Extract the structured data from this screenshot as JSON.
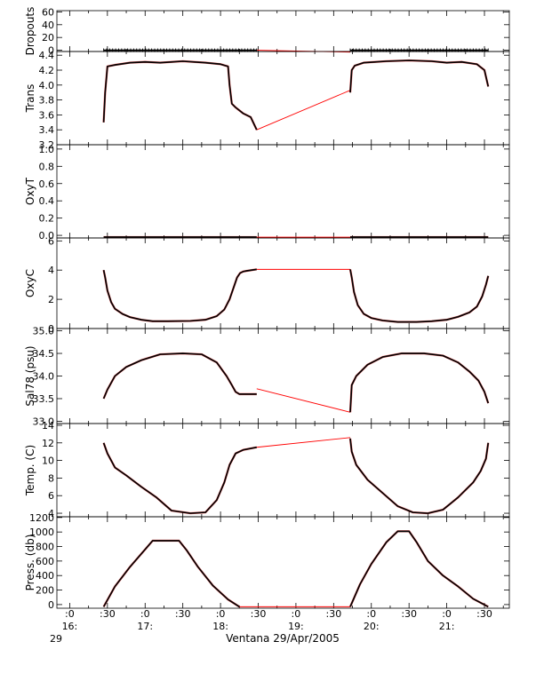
{
  "chart_data": {
    "type": "line",
    "time_axis": {
      "major_labels": [
        ":0",
        ":30",
        ":0",
        ":30",
        ":0",
        ":30",
        ":0",
        ":30",
        ":0",
        ":30",
        ":0",
        ":30"
      ],
      "hour_labels": [
        "16:",
        "17:",
        "18:",
        "19:",
        "20:",
        "21:"
      ],
      "day_label": "29",
      "xlabel": "Ventana 29/Apr/2005",
      "xlim_hours": [
        15.83,
        21.83
      ]
    },
    "colors": {
      "data": "#000000",
      "gap": "#ff0000",
      "axis": "#000000"
    },
    "panels": [
      {
        "name": "dropouts",
        "ylabel": "Dropouts",
        "ylim": [
          -2,
          62
        ],
        "ticks": [
          "60",
          "40",
          "20",
          "0"
        ],
        "tick_values": [
          60,
          40,
          20,
          0
        ],
        "series": [
          {
            "x": [
              16.45,
              18.48
            ],
            "y": [
              0,
              0
            ],
            "style": "markers"
          },
          {
            "x": [
              19.72,
              21.55
            ],
            "y": [
              0,
              0
            ],
            "style": "markers"
          }
        ],
        "gap": {
          "x": [
            18.48,
            19.72
          ],
          "y": [
            0,
            -3
          ]
        }
      },
      {
        "name": "trans",
        "ylabel": "Trans",
        "ylim": [
          3.2,
          4.45
        ],
        "ticks": [
          "4.4",
          "4.2",
          "4.0",
          "3.8",
          "3.6",
          "3.4",
          "3.2"
        ],
        "tick_values": [
          4.4,
          4.2,
          4.0,
          3.8,
          3.6,
          3.4,
          3.2
        ],
        "series": [
          {
            "x": [
              16.45,
              16.47,
              16.5,
              16.6,
              16.8,
              17.0,
              17.2,
              17.5,
              17.8,
              18.0,
              18.1,
              18.12,
              18.15,
              18.2,
              18.3,
              18.4,
              18.48
            ],
            "y": [
              3.5,
              3.9,
              4.25,
              4.27,
              4.3,
              4.31,
              4.3,
              4.32,
              4.3,
              4.28,
              4.25,
              4.0,
              3.75,
              3.7,
              3.62,
              3.57,
              3.4
            ]
          },
          {
            "x": [
              19.72,
              19.74,
              19.78,
              19.9,
              20.2,
              20.5,
              20.8,
              21.0,
              21.2,
              21.4,
              21.5,
              21.55
            ],
            "y": [
              3.9,
              4.2,
              4.26,
              4.3,
              4.32,
              4.33,
              4.32,
              4.3,
              4.31,
              4.28,
              4.2,
              3.98
            ]
          }
        ],
        "gap": {
          "x": [
            18.48,
            19.72
          ],
          "y": [
            3.4,
            3.93
          ]
        }
      },
      {
        "name": "oxyt",
        "ylabel": "OxyT",
        "ylim": [
          -0.03,
          1.05
        ],
        "ticks": [
          "1.0",
          "0.8",
          "0.6",
          "0.4",
          "0.2",
          "0.0"
        ],
        "tick_values": [
          1.0,
          0.8,
          0.6,
          0.4,
          0.2,
          0.0
        ],
        "series": [
          {
            "x": [
              16.45,
              18.48
            ],
            "y": [
              -0.02,
              -0.02
            ]
          },
          {
            "x": [
              19.72,
              21.55
            ],
            "y": [
              -0.02,
              -0.02
            ]
          }
        ],
        "gap": {
          "x": [
            18.48,
            19.72
          ],
          "y": [
            -0.02,
            -0.02
          ]
        }
      },
      {
        "name": "oxyc",
        "ylabel": "OxyC",
        "ylim": [
          0,
          6.2
        ],
        "ticks": [
          "6",
          "4",
          "2",
          "0"
        ],
        "tick_values": [
          6,
          4,
          2,
          0
        ],
        "series": [
          {
            "x": [
              16.45,
              16.47,
              16.5,
              16.55,
              16.6,
              16.7,
              16.8,
              16.95,
              17.1,
              17.3,
              17.6,
              17.8,
              17.95,
              18.05,
              18.12,
              18.18,
              18.22,
              18.26,
              18.3,
              18.35,
              18.48
            ],
            "y": [
              4.0,
              3.5,
              2.6,
              1.8,
              1.35,
              1.0,
              0.78,
              0.6,
              0.5,
              0.5,
              0.52,
              0.6,
              0.85,
              1.3,
              2.0,
              2.9,
              3.5,
              3.8,
              3.9,
              3.95,
              4.05
            ]
          },
          {
            "x": [
              19.72,
              19.74,
              19.77,
              19.82,
              19.9,
              20.0,
              20.15,
              20.35,
              20.6,
              20.8,
              21.0,
              21.15,
              21.3,
              21.4,
              21.47,
              21.52,
              21.55
            ],
            "y": [
              4.05,
              3.5,
              2.5,
              1.6,
              1.0,
              0.72,
              0.55,
              0.45,
              0.45,
              0.5,
              0.6,
              0.8,
              1.1,
              1.5,
              2.2,
              3.0,
              3.6
            ]
          }
        ],
        "gap": {
          "x": [
            18.48,
            19.72
          ],
          "y": [
            4.05,
            4.05
          ]
        }
      },
      {
        "name": "sal78",
        "ylabel": "Sal78 (psu)",
        "ylim": [
          32.95,
          35.05
        ],
        "ticks": [
          "35.0",
          "34.5",
          "34.0",
          "33.5",
          "33.0"
        ],
        "tick_values": [
          35.0,
          34.5,
          34.0,
          33.5,
          33.0
        ],
        "series": [
          {
            "x": [
              16.45,
              16.5,
              16.6,
              16.75,
              16.95,
              17.2,
              17.5,
              17.75,
              17.95,
              18.08,
              18.15,
              18.2,
              18.25,
              18.48
            ],
            "y": [
              33.5,
              33.7,
              34.0,
              34.2,
              34.35,
              34.48,
              34.5,
              34.48,
              34.3,
              34.0,
              33.8,
              33.65,
              33.6,
              33.6
            ]
          },
          {
            "x": [
              19.72,
              19.74,
              19.8,
              19.95,
              20.15,
              20.4,
              20.7,
              20.95,
              21.15,
              21.3,
              21.42,
              21.5,
              21.55
            ],
            "y": [
              33.2,
              33.8,
              34.0,
              34.25,
              34.42,
              34.5,
              34.5,
              34.45,
              34.3,
              34.1,
              33.9,
              33.65,
              33.4
            ]
          }
        ],
        "gap": {
          "x": [
            18.48,
            19.72
          ],
          "y": [
            33.72,
            33.2
          ]
        }
      },
      {
        "name": "temp",
        "ylabel": "Temp. (C)",
        "ylim": [
          3.6,
          14.2
        ],
        "ticks": [
          "14",
          "12",
          "10",
          "8",
          "6",
          "4"
        ],
        "tick_values": [
          14,
          12,
          10,
          8,
          6,
          4
        ],
        "series": [
          {
            "x": [
              16.45,
              16.5,
              16.6,
              16.75,
              16.95,
              17.15,
              17.35,
              17.6,
              17.8,
              17.95,
              18.05,
              18.12,
              18.2,
              18.3,
              18.48
            ],
            "y": [
              12.0,
              10.8,
              9.2,
              8.3,
              7.0,
              5.8,
              4.3,
              4.0,
              4.1,
              5.5,
              7.5,
              9.5,
              10.8,
              11.2,
              11.5
            ]
          },
          {
            "x": [
              19.72,
              19.74,
              19.8,
              19.95,
              20.15,
              20.35,
              20.55,
              20.75,
              20.95,
              21.15,
              21.35,
              21.45,
              21.52,
              21.55
            ],
            "y": [
              12.5,
              11.0,
              9.5,
              7.8,
              6.3,
              4.8,
              4.1,
              4.0,
              4.4,
              5.8,
              7.5,
              8.8,
              10.2,
              12.0
            ]
          }
        ],
        "gap": {
          "x": [
            18.48,
            19.72
          ],
          "y": [
            11.5,
            12.6
          ]
        }
      },
      {
        "name": "press",
        "ylabel": "Press. (db)",
        "ylim": [
          -50,
          1210
        ],
        "ticks": [
          "1200",
          "1000",
          "800",
          "600",
          "400",
          "200",
          "0"
        ],
        "tick_values": [
          1200,
          1000,
          800,
          600,
          400,
          200,
          0
        ],
        "series": [
          {
            "x": [
              16.45,
              16.6,
              16.8,
              17.0,
              17.1,
              17.45,
              17.55,
              17.7,
              17.9,
              18.1,
              18.25
            ],
            "y": [
              -30,
              250,
              520,
              760,
              880,
              880,
              750,
              520,
              260,
              70,
              -30
            ]
          },
          {
            "x": [
              19.72,
              19.85,
              20.0,
              20.2,
              20.35,
              20.5,
              20.6,
              20.75,
              20.95,
              21.15,
              21.35,
              21.55
            ],
            "y": [
              -30,
              280,
              560,
              860,
              1010,
              1010,
              860,
              600,
              400,
              250,
              80,
              -30
            ]
          }
        ],
        "gap": {
          "x": [
            18.25,
            19.72
          ],
          "y": [
            -30,
            -30
          ]
        }
      }
    ]
  }
}
